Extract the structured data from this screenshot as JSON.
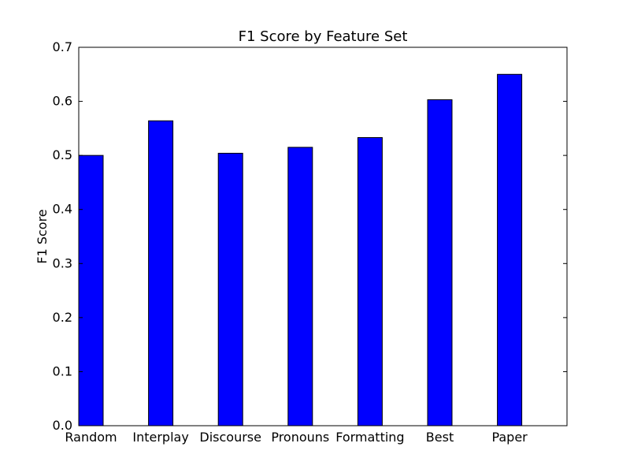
{
  "chart_data": {
    "type": "bar",
    "title": "F1 Score by Feature Set",
    "xlabel": "",
    "ylabel": "F1 Score",
    "categories": [
      "Random",
      "Interplay",
      "Discourse",
      "Pronouns",
      "Formatting",
      "Best",
      "Paper"
    ],
    "values": [
      0.5,
      0.564,
      0.504,
      0.515,
      0.533,
      0.603,
      0.65
    ],
    "ylim": [
      0,
      0.7
    ],
    "yticks": [
      0.0,
      0.1,
      0.2,
      0.3,
      0.4,
      0.5,
      0.6,
      0.7
    ],
    "ytick_labels": [
      "0.0",
      "0.1",
      "0.2",
      "0.3",
      "0.4",
      "0.5",
      "0.6",
      "0.7"
    ],
    "grid": false,
    "legend": "none",
    "colors": {
      "bar_fill": "#0000ff",
      "bar_stroke": "#000000",
      "axes": "#000000",
      "background": "#ffffff"
    }
  }
}
